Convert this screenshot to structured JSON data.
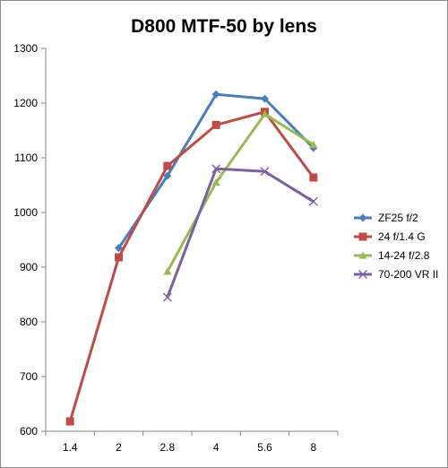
{
  "chart_data": {
    "type": "line",
    "title": "D800 MTF-50 by lens",
    "categories": [
      "1.4",
      "2",
      "2.8",
      "4",
      "5.6",
      "8"
    ],
    "ylim": [
      600,
      1300
    ],
    "yticks": [
      600,
      700,
      800,
      900,
      1000,
      1100,
      1200,
      1300
    ],
    "grid": false,
    "legend_position": "right",
    "series": [
      {
        "name": "ZF25 f/2",
        "color": "#4a7ebb",
        "marker": "diamond",
        "values": [
          null,
          935,
          1067,
          1216,
          1208,
          1118
        ]
      },
      {
        "name": "24 f/1.4 G",
        "color": "#be4b48",
        "marker": "square",
        "values": [
          618,
          918,
          1085,
          1160,
          1184,
          1064
        ]
      },
      {
        "name": "14-24 f/2.8",
        "color": "#98b954",
        "marker": "triangle",
        "values": [
          null,
          null,
          892,
          1055,
          1180,
          1124
        ]
      },
      {
        "name": "70-200 VR II",
        "color": "#7d60a0",
        "marker": "x",
        "values": [
          null,
          null,
          845,
          1080,
          1075,
          1020
        ]
      }
    ]
  }
}
